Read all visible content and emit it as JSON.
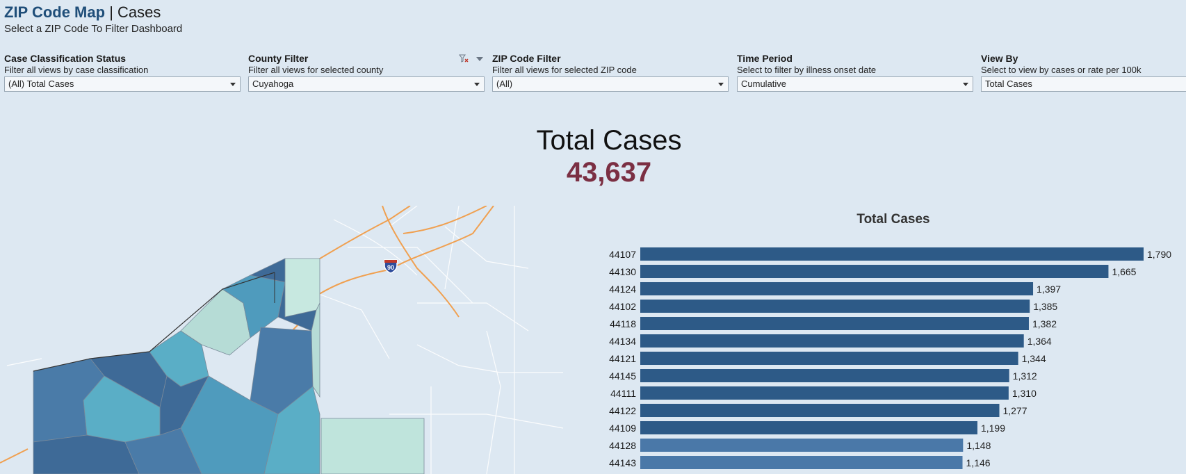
{
  "header": {
    "title_main": "ZIP Code Map",
    "title_sep": "|",
    "title_sub": "Cases",
    "subtitle": "Select a ZIP Code To Filter Dashboard"
  },
  "filters": [
    {
      "label": "Case Classification Status",
      "desc": "Filter all views by case classification",
      "value": "(All) Total Cases"
    },
    {
      "label": "County Filter",
      "desc": "Filter all views for selected county",
      "value": "Cuyahoga"
    },
    {
      "label": "ZIP Code Filter",
      "desc": "Filter all views for selected ZIP code",
      "value": "(All)"
    },
    {
      "label": "Time Period",
      "desc": "Select to filter by illness onset date",
      "value": "Cumulative"
    },
    {
      "label": "View By",
      "desc": "Select to view by cases or rate per 100k",
      "value": "Total Cases"
    }
  ],
  "kpi": {
    "label": "Total Cases",
    "value": "43,637"
  },
  "map": {
    "highway_label": "90"
  },
  "colors": {
    "title": "#1f4e79",
    "kpi_value": "#7b2f43",
    "bar_dark": "#2d5a87",
    "bar_light": "#4a78a8",
    "background": "#dde8f2"
  },
  "chart_data": {
    "type": "bar",
    "orientation": "horizontal",
    "title": "Total Cases",
    "categories": [
      "44107",
      "44130",
      "44124",
      "44102",
      "44118",
      "44134",
      "44121",
      "44145",
      "44111",
      "44122",
      "44109",
      "44128",
      "44143"
    ],
    "values": [
      1790,
      1665,
      1397,
      1385,
      1382,
      1364,
      1344,
      1312,
      1310,
      1277,
      1199,
      1148,
      1146
    ],
    "value_labels": [
      "1,790",
      "1,665",
      "1,397",
      "1,385",
      "1,382",
      "1,364",
      "1,344",
      "1,312",
      "1,310",
      "1,277",
      "1,199",
      "1,148",
      "1,146"
    ],
    "xlim": [
      0,
      1790
    ]
  }
}
